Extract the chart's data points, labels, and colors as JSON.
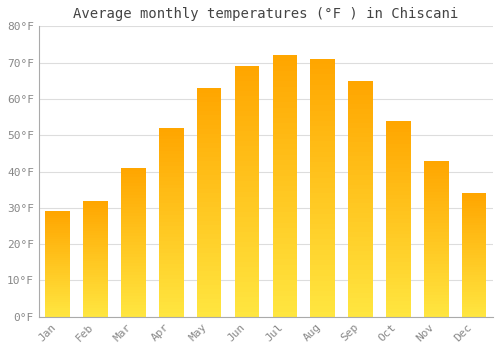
{
  "months": [
    "Jan",
    "Feb",
    "Mar",
    "Apr",
    "May",
    "Jun",
    "Jul",
    "Aug",
    "Sep",
    "Oct",
    "Nov",
    "Dec"
  ],
  "values": [
    29,
    32,
    41,
    52,
    63,
    69,
    72,
    71,
    65,
    54,
    43,
    34
  ],
  "bar_color_main": "#FFA500",
  "bar_color_light": "#FFD060",
  "title": "Average monthly temperatures (°F ) in Chiscani",
  "ylim": [
    0,
    80
  ],
  "yticks": [
    0,
    10,
    20,
    30,
    40,
    50,
    60,
    70,
    80
  ],
  "ytick_labels": [
    "0°F",
    "10°F",
    "20°F",
    "30°F",
    "40°F",
    "50°F",
    "60°F",
    "70°F",
    "80°F"
  ],
  "background_color": "#FFFFFF",
  "grid_color": "#DDDDDD",
  "title_fontsize": 10,
  "tick_fontsize": 8,
  "font_family": "monospace",
  "bar_width": 0.65
}
